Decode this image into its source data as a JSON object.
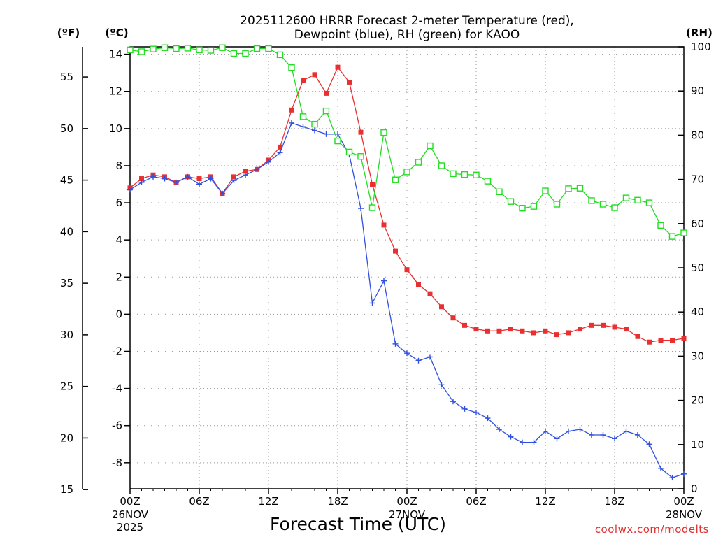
{
  "chart_data": {
    "type": "line",
    "title": [
      "2025112600 HRRR Forecast 2-meter Temperature (red),",
      "Dewpoint (blue), RH (green) for KAOO"
    ],
    "units": {
      "fahrenheit": "(ºF)",
      "celsius": "(ºC)",
      "rh": "(RH)"
    },
    "xlabel": "Forecast Time (UTC)",
    "credit": "coolwx.com/modelts",
    "x_range_hours": [
      0,
      48
    ],
    "x_ticks": [
      {
        "hour": 0,
        "label": "00Z"
      },
      {
        "hour": 6,
        "label": "06Z"
      },
      {
        "hour": 12,
        "label": "12Z"
      },
      {
        "hour": 18,
        "label": "18Z"
      },
      {
        "hour": 24,
        "label": "00Z"
      },
      {
        "hour": 30,
        "label": "06Z"
      },
      {
        "hour": 36,
        "label": "12Z"
      },
      {
        "hour": 42,
        "label": "18Z"
      },
      {
        "hour": 48,
        "label": "00Z"
      }
    ],
    "date_labels": [
      {
        "hour": 0,
        "lines": [
          "26NOV",
          "2025"
        ]
      },
      {
        "hour": 24,
        "lines": [
          "27NOV"
        ]
      },
      {
        "hour": 48,
        "lines": [
          "28NOV"
        ]
      }
    ],
    "celsius_axis": {
      "range": [
        -9.4,
        14.4
      ],
      "ticks": [
        14,
        12,
        10,
        8,
        6,
        4,
        2,
        0,
        -2,
        -4,
        -6,
        -8
      ]
    },
    "fahrenheit_axis": {
      "ticks": [
        55,
        50,
        45,
        40,
        35,
        30,
        25,
        20,
        15
      ]
    },
    "rh_axis": {
      "range": [
        0,
        100
      ],
      "ticks": [
        100,
        90,
        80,
        70,
        60,
        50,
        40,
        30,
        20,
        10,
        0
      ]
    },
    "series": [
      {
        "name": "Temperature (°C)",
        "axis": "celsius",
        "color": "#e83030",
        "marker": "filled-square",
        "values": [
          6.8,
          7.3,
          7.5,
          7.4,
          7.1,
          7.4,
          7.3,
          7.4,
          6.5,
          7.4,
          7.7,
          7.8,
          8.3,
          9.0,
          11.0,
          12.6,
          12.9,
          11.9,
          13.3,
          12.5,
          9.8,
          7.0,
          4.8,
          3.4,
          2.4,
          1.6,
          1.1,
          0.4,
          -0.2,
          -0.6,
          -0.8,
          -0.9,
          -0.9,
          -0.8,
          -0.9,
          -1.0,
          -0.9,
          -1.1,
          -1.0,
          -0.8,
          -0.6,
          -0.6,
          -0.7,
          -0.8,
          -1.2,
          -1.5,
          -1.4,
          -1.4,
          -1.3
        ]
      },
      {
        "name": "Dewpoint (°C)",
        "axis": "celsius",
        "color": "#3050e0",
        "marker": "plus",
        "values": [
          6.7,
          7.1,
          7.4,
          7.3,
          7.1,
          7.4,
          7.0,
          7.3,
          6.5,
          7.2,
          7.5,
          7.8,
          8.2,
          8.7,
          10.3,
          10.1,
          9.9,
          9.7,
          9.7,
          8.6,
          5.7,
          0.6,
          1.8,
          -1.6,
          -2.1,
          -2.5,
          -2.3,
          -3.8,
          -4.7,
          -5.1,
          -5.3,
          -5.6,
          -6.2,
          -6.6,
          -6.9,
          -6.9,
          -6.3,
          -6.7,
          -6.3,
          -6.2,
          -6.5,
          -6.5,
          -6.7,
          -6.3,
          -6.5,
          -7.0,
          -8.3,
          -8.8,
          -8.6
        ]
      },
      {
        "name": "RH (%)",
        "axis": "rh",
        "color": "#22dd22",
        "marker": "open-square",
        "values": [
          99.3,
          98.9,
          99.5,
          99.8,
          99.6,
          99.7,
          99.3,
          99.2,
          99.8,
          98.5,
          98.5,
          99.6,
          99.6,
          98.2,
          95.3,
          84.2,
          82.5,
          85.5,
          78.7,
          76.2,
          75.2,
          63.6,
          80.6,
          69.9,
          71.7,
          73.9,
          77.6,
          73.1,
          71.3,
          71.1,
          71.0,
          69.6,
          67.2,
          65.0,
          63.5,
          63.9,
          67.4,
          64.4,
          67.9,
          68.0,
          65.2,
          64.4,
          63.6,
          65.8,
          65.3,
          64.7,
          59.6,
          57.1,
          57.9
        ]
      }
    ]
  }
}
